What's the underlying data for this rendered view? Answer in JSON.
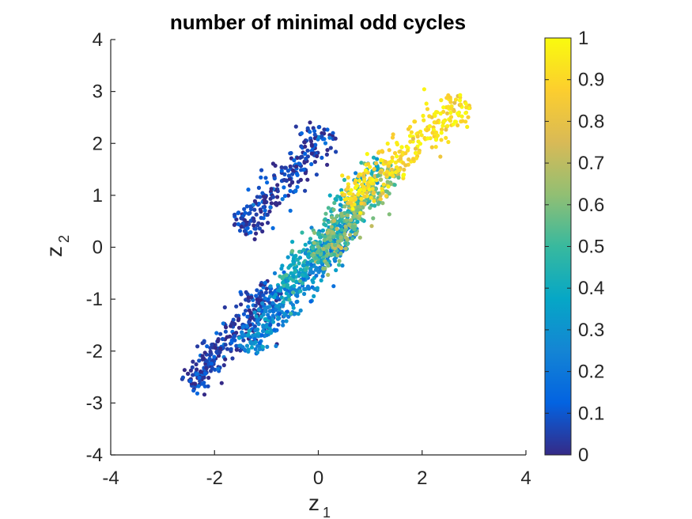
{
  "chart_data": {
    "type": "scatter",
    "title": "number of minimal odd cycles",
    "xlabel": "z",
    "xlabel_sub": "1",
    "ylabel": "z",
    "ylabel_sub": "2",
    "xlim": [
      -4,
      4
    ],
    "ylim": [
      -4,
      4
    ],
    "xticks": [
      -4,
      -2,
      0,
      2,
      4
    ],
    "yticks": [
      -4,
      -3,
      -2,
      -1,
      0,
      1,
      2,
      3,
      4
    ],
    "grid": false,
    "colormap": "parula",
    "colorbar": {
      "limits": [
        0,
        1
      ],
      "ticks": [
        0,
        0.1,
        0.2,
        0.3,
        0.4,
        0.5,
        0.6,
        0.7,
        0.8,
        0.9,
        1
      ],
      "tick_labels": [
        "0",
        "0.1",
        "0.2",
        "0.3",
        "0.4",
        "0.5",
        "0.6",
        "0.7",
        "0.8",
        "0.9",
        "1"
      ],
      "colors": [
        "#352a87",
        "#0363e1",
        "#1485d4",
        "#06a7c6",
        "#38b99e",
        "#92bf73",
        "#d9ba56",
        "#fcce2e",
        "#f9fb0e"
      ]
    },
    "clusters": [
      {
        "name_hint": "upper-left branch",
        "value": 0.05,
        "x_range": [
          -1.5,
          0.2
        ],
        "y_range": [
          0.3,
          2.3
        ],
        "direction": [
          0.9,
          1.05
        ],
        "n": 260
      },
      {
        "name_hint": "lower-left tail",
        "value": 0.05,
        "x_range": [
          -2.5,
          -0.8
        ],
        "y_range": [
          -2.7,
          -0.8
        ],
        "direction": [
          0.85,
          1.0
        ],
        "n": 320
      },
      {
        "name_hint": "middle band blue",
        "value": 0.25,
        "x_range": [
          -1.4,
          0.6
        ],
        "y_range": [
          -2.0,
          0.5
        ],
        "direction": [
          0.85,
          1.0
        ],
        "n": 380
      },
      {
        "name_hint": "middle band cyan",
        "value": 0.4,
        "x_range": [
          -0.6,
          1.0
        ],
        "y_range": [
          -1.2,
          1.8
        ],
        "direction": [
          0.85,
          1.0
        ],
        "n": 340
      },
      {
        "name_hint": "green band",
        "value": 0.6,
        "x_range": [
          0.0,
          1.4
        ],
        "y_range": [
          -0.4,
          1.6
        ],
        "direction": [
          0.85,
          1.0
        ],
        "n": 260
      },
      {
        "name_hint": "yellow upper-right",
        "value": 0.92,
        "x_range": [
          0.6,
          2.8
        ],
        "y_range": [
          0.8,
          2.9
        ],
        "direction": [
          1.0,
          0.85
        ],
        "n": 300
      }
    ]
  }
}
